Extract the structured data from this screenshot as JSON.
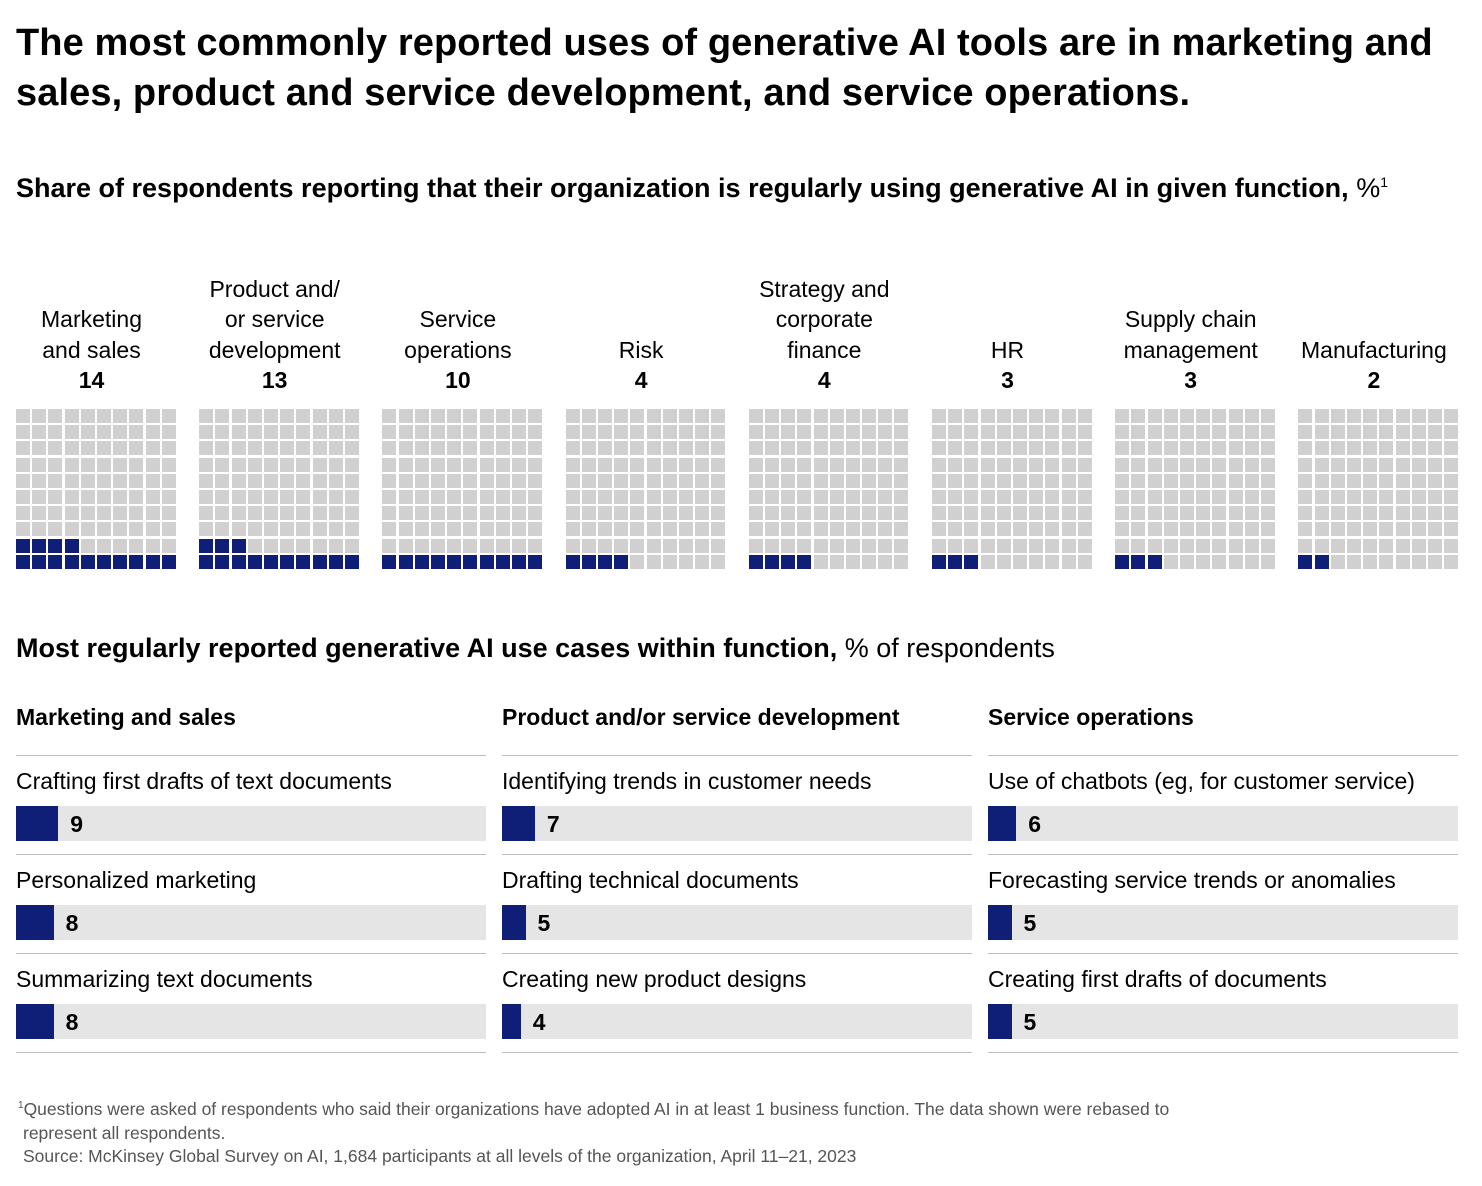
{
  "title": "The most commonly reported uses of generative AI tools are in marketing and sales, product and service development, and service operations.",
  "subtitle_bold": "Share of respondents reporting that their organization is regularly using generative AI in given function,",
  "subtitle_unit": " %",
  "subtitle_note": "1",
  "section2_bold": "Most regularly reported generative AI use cases within function,",
  "section2_unit": " % of respondents",
  "colors": {
    "filled": "#0f1f78",
    "empty": "#d0d0d0",
    "track": "#e5e5e5"
  },
  "chart_data": [
    {
      "type": "waffle",
      "unit": "%",
      "cells_per_grid": 100,
      "categories": [
        "Marketing\nand sales",
        "Product and/\nor service\ndevelopment",
        "Service\noperations",
        "Risk",
        "Strategy and\ncorporate\nfinance",
        "HR",
        "Supply chain\nmanagement",
        "Manufacturing"
      ],
      "values": [
        14,
        13,
        10,
        4,
        4,
        3,
        3,
        2
      ]
    },
    {
      "type": "bar",
      "orientation": "horizontal",
      "panels": [
        {
          "title": "Marketing and sales",
          "categories": [
            "Crafting first drafts of text documents",
            "Personalized marketing",
            "Summarizing text documents"
          ],
          "values": [
            9,
            8,
            8
          ]
        },
        {
          "title": "Product and/or service development",
          "categories": [
            "Identifying trends in customer needs",
            "Drafting technical documents",
            "Creating new product designs"
          ],
          "values": [
            7,
            5,
            4
          ]
        },
        {
          "title": "Service operations",
          "categories": [
            "Use of chatbots (eg, for customer service)",
            "Forecasting service trends or anomalies",
            "Creating first drafts of documents"
          ],
          "values": [
            6,
            5,
            5
          ]
        }
      ]
    }
  ],
  "footnote": {
    "marker": "1",
    "line1": "Questions were asked of respondents who said their organizations have adopted AI in at least 1 business function. The data shown were rebased to",
    "line2": "represent all respondents.",
    "source": "Source: McKinsey Global Survey on AI, 1,684 participants at all levels of the organization, April 11–21, 2023"
  }
}
